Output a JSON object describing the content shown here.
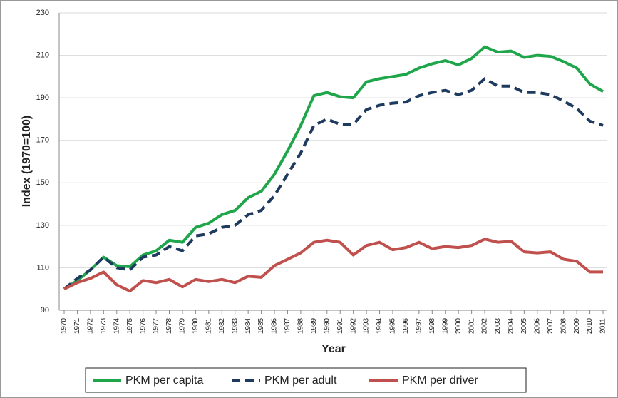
{
  "chart_data": {
    "type": "line",
    "x_label": "Year",
    "y_label": "Index (1970=100)",
    "categories": [
      "1970",
      "1971",
      "1972",
      "1973",
      "1974",
      "1975",
      "1976",
      "1977",
      "1978",
      "1979",
      "1980",
      "1981",
      "1982",
      "1983",
      "1984",
      "1985",
      "1986",
      "1987",
      "1988",
      "1989",
      "1990",
      "1991",
      "1992",
      "1993",
      "1994",
      "1995",
      "1996",
      "1997",
      "1998",
      "1999",
      "2000",
      "2001",
      "2002",
      "2003",
      "2004",
      "2005",
      "2006",
      "2007",
      "2008",
      "2009",
      "2010",
      "2011"
    ],
    "series": [
      {
        "name": "PKM per capita",
        "color": "#1fa64a",
        "dash": "solid",
        "values": [
          100,
          104,
          109,
          115,
          111,
          110.5,
          116,
          118,
          123,
          122,
          129,
          131,
          135,
          137,
          143,
          146,
          154,
          165,
          177,
          191,
          192.5,
          190.5,
          190,
          197.5,
          199,
          200,
          201,
          204,
          206,
          207.5,
          205.5,
          208.5,
          214,
          211.5,
          212,
          209,
          210,
          209.5,
          207,
          204,
          196.5,
          193
        ]
      },
      {
        "name": "PKM per adult",
        "color": "#1f3a5f",
        "dash": "dashed",
        "values": [
          100,
          105,
          109,
          115,
          110,
          109,
          115,
          116,
          120,
          118,
          125,
          126,
          129,
          130,
          135,
          137,
          144,
          154,
          164,
          177,
          180,
          177.5,
          177.5,
          184.5,
          186.5,
          187.5,
          188,
          191,
          192.5,
          193.5,
          191.5,
          193.5,
          199,
          195.5,
          195.5,
          192.5,
          192.5,
          191.5,
          188.5,
          185,
          179,
          177
        ]
      },
      {
        "name": "PKM per driver",
        "color": "#c0504d",
        "dash": "solid",
        "values": [
          100,
          103,
          105,
          108,
          102,
          99,
          104,
          103,
          104.5,
          101,
          104.5,
          103.5,
          104.5,
          103,
          106,
          105.5,
          111,
          114,
          117,
          122,
          123,
          122,
          116,
          120.5,
          122,
          118.5,
          119.5,
          122,
          119,
          120,
          119.5,
          120.5,
          123.5,
          122,
          122.5,
          117.5,
          117,
          117.5,
          114,
          113,
          108,
          108
        ]
      }
    ],
    "ylim": [
      90,
      230
    ],
    "yticks": [
      90,
      110,
      130,
      150,
      170,
      190,
      210,
      230
    ],
    "grid": true,
    "legend": "bottom"
  }
}
